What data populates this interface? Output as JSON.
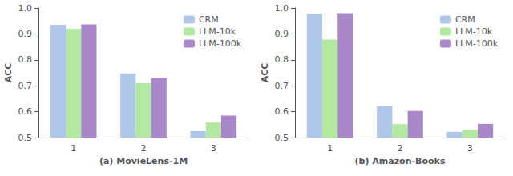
{
  "chart_data": [
    {
      "type": "bar",
      "xlabel": "(a) MovieLens-1M",
      "ylabel": "ACC",
      "categories": [
        "1",
        "2",
        "3"
      ],
      "series": [
        {
          "name": "CRM",
          "color": "#aec6e8",
          "values": [
            0.935,
            0.748,
            0.525
          ]
        },
        {
          "name": "LLM-10k",
          "color": "#b2e8a0",
          "values": [
            0.92,
            0.71,
            0.558
          ]
        },
        {
          "name": "LLM-100k",
          "color": "#a888c8",
          "values": [
            0.937,
            0.73,
            0.585
          ]
        }
      ],
      "ylim": [
        0.5,
        1.0
      ],
      "yticks": [
        0.5,
        0.6,
        0.7,
        0.8,
        0.9,
        {
          "value": 1.0,
          "label": "1.0"
        }
      ],
      "grid": false,
      "legend": "upper right"
    },
    {
      "type": "bar",
      "xlabel": "(b) Amazon-Books",
      "ylabel": "ACC",
      "categories": [
        "1",
        "2",
        "3"
      ],
      "series": [
        {
          "name": "CRM",
          "color": "#aec6e8",
          "values": [
            0.978,
            0.622,
            0.522
          ]
        },
        {
          "name": "LLM-10k",
          "color": "#b2e8a0",
          "values": [
            0.878,
            0.552,
            0.53
          ]
        },
        {
          "name": "LLM-100k",
          "color": "#a888c8",
          "values": [
            0.98,
            0.603,
            0.553
          ]
        }
      ],
      "ylim": [
        0.5,
        1.0
      ],
      "yticks": [
        0.5,
        0.6,
        0.7,
        0.8,
        0.9,
        {
          "value": 1.0,
          "label": "1.0"
        }
      ],
      "grid": false,
      "legend": "upper right"
    }
  ]
}
